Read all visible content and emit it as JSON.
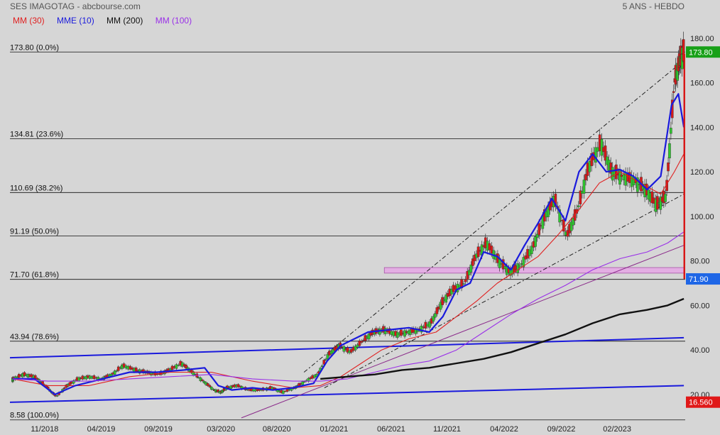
{
  "header": {
    "title": "SES IMAGOTAG - abcbourse.com",
    "period": "5 ANS - HEBDO"
  },
  "legend": [
    {
      "label": "MM (30)",
      "color": "#e02020"
    },
    {
      "label": "MME (10)",
      "color": "#1a1adc"
    },
    {
      "label": "MM (200)",
      "color": "#111111"
    },
    {
      "label": "MM (100)",
      "color": "#9a30e8"
    }
  ],
  "chart_data": {
    "type": "line",
    "title": "SES IMAGOTAG - abcbourse.com",
    "subtitle": "5 ANS - HEBDO",
    "ylim": [
      8.5,
      186
    ],
    "yticks": [
      20,
      40,
      60,
      80,
      100,
      120,
      140,
      160,
      180
    ],
    "ytick_labels": [
      "20.00",
      "40.00",
      "60.00",
      "80.00",
      "100.00",
      "120.00",
      "140.00",
      "160.00",
      "180.00"
    ],
    "xlim": [
      2018.62,
      2023.58
    ],
    "xticks": [
      {
        "label": "11/2018",
        "x": 2018.875
      },
      {
        "label": "04/2019",
        "x": 2019.29
      },
      {
        "label": "09/2019",
        "x": 2019.71
      },
      {
        "label": "03/2020",
        "x": 2020.17
      },
      {
        "label": "08/2020",
        "x": 2020.58
      },
      {
        "label": "01/2021",
        "x": 2021.0
      },
      {
        "label": "06/2021",
        "x": 2021.42
      },
      {
        "label": "11/2021",
        "x": 2021.83
      },
      {
        "label": "04/2022",
        "x": 2022.25
      },
      {
        "label": "09/2022",
        "x": 2022.67
      },
      {
        "label": "02/2023",
        "x": 2023.08
      }
    ],
    "fib_levels": [
      {
        "label": "173.80  (0.0%)",
        "value": 173.8
      },
      {
        "label": "134.81  (23.6%)",
        "value": 134.81
      },
      {
        "label": "110.69  (38.2%)",
        "value": 110.69
      },
      {
        "label": "91.19  (50.0%)",
        "value": 91.19
      },
      {
        "label": "71.70  (61.8%)",
        "value": 71.7
      },
      {
        "label": "43.94  (78.6%)",
        "value": 43.94
      },
      {
        "label": "8.58  (100.0%)",
        "value": 8.58
      }
    ],
    "price_series": {
      "x": [
        2018.64,
        2018.72,
        2018.8,
        2018.88,
        2018.96,
        2019.04,
        2019.12,
        2019.2,
        2019.29,
        2019.37,
        2019.45,
        2019.54,
        2019.62,
        2019.71,
        2019.79,
        2019.88,
        2019.96,
        2020.04,
        2020.12,
        2020.17,
        2020.21,
        2020.29,
        2020.37,
        2020.46,
        2020.54,
        2020.62,
        2020.71,
        2020.79,
        2020.88,
        2020.96,
        2021.04,
        2021.12,
        2021.21,
        2021.29,
        2021.37,
        2021.46,
        2021.54,
        2021.62,
        2021.71,
        2021.79,
        2021.87,
        2021.96,
        2022.04,
        2022.12,
        2022.21,
        2022.29,
        2022.37,
        2022.46,
        2022.54,
        2022.62,
        2022.71,
        2022.79,
        2022.87,
        2022.96,
        2023.04,
        2023.12,
        2023.21,
        2023.29,
        2023.37,
        2023.44,
        2023.5,
        2023.54,
        2023.57
      ],
      "close": [
        27,
        29,
        28,
        24,
        19,
        24,
        27,
        28,
        27,
        29,
        33,
        31,
        30,
        29,
        31,
        34,
        30,
        26,
        22,
        21,
        23,
        24,
        22,
        22,
        23,
        21,
        23,
        26,
        29,
        38,
        42,
        39,
        44,
        48,
        49,
        47,
        48,
        49,
        52,
        61,
        67,
        70,
        82,
        88,
        80,
        75,
        78,
        86,
        99,
        108,
        91,
        103,
        122,
        133,
        120,
        118,
        116,
        112,
        105,
        109,
        160,
        170,
        173.8
      ]
    },
    "series": [
      {
        "name": "MM (30)",
        "color": "#e02020",
        "x": [
          2018.64,
          2018.9,
          2019.2,
          2019.5,
          2019.8,
          2020.1,
          2020.4,
          2020.7,
          2020.9,
          2021.05,
          2021.2,
          2021.35,
          2021.55,
          2021.75,
          2021.9,
          2022.05,
          2022.2,
          2022.35,
          2022.5,
          2022.65,
          2022.8,
          2022.95,
          2023.1,
          2023.25,
          2023.4,
          2023.5,
          2023.57
        ],
        "values": [
          27,
          24,
          24,
          28,
          30,
          30,
          26,
          23,
          24,
          28,
          34,
          40,
          45,
          48,
          55,
          62,
          70,
          76,
          82,
          92,
          103,
          115,
          120,
          115,
          110,
          120,
          128
        ]
      },
      {
        "name": "MME (10)",
        "color": "#1a1adc",
        "x": [
          2018.64,
          2018.8,
          2018.95,
          2019.1,
          2019.3,
          2019.5,
          2019.7,
          2019.9,
          2020.05,
          2020.15,
          2020.25,
          2020.4,
          2020.55,
          2020.7,
          2020.85,
          2020.95,
          2021.05,
          2021.15,
          2021.25,
          2021.4,
          2021.55,
          2021.7,
          2021.8,
          2021.9,
          2022.0,
          2022.1,
          2022.2,
          2022.3,
          2022.4,
          2022.5,
          2022.6,
          2022.7,
          2022.8,
          2022.9,
          2023.0,
          2023.1,
          2023.2,
          2023.3,
          2023.4,
          2023.48,
          2023.53,
          2023.57
        ],
        "values": [
          27,
          27,
          20,
          24,
          27,
          30,
          30,
          31,
          32,
          24,
          22,
          23,
          22,
          23,
          25,
          35,
          42,
          45,
          48,
          49,
          50,
          48,
          55,
          67,
          70,
          84,
          82,
          76,
          87,
          97,
          108,
          98,
          120,
          128,
          120,
          121,
          118,
          112,
          118,
          150,
          155,
          140
        ]
      },
      {
        "name": "MM (100)",
        "color": "#9a30e8",
        "x": [
          2018.64,
          2018.9,
          2019.2,
          2019.5,
          2019.8,
          2020.1,
          2020.4,
          2020.7,
          2020.9,
          2021.1,
          2021.3,
          2021.5,
          2021.7,
          2021.9,
          2022.1,
          2022.3,
          2022.5,
          2022.7,
          2022.9,
          2023.1,
          2023.3,
          2023.45,
          2023.57
        ],
        "values": [
          27,
          26,
          26,
          27,
          28,
          29,
          27,
          26,
          26,
          27,
          30,
          33,
          35,
          40,
          48,
          56,
          63,
          69,
          76,
          81,
          84,
          88,
          93
        ]
      },
      {
        "name": "MM (200)",
        "color": "#111111",
        "x": [
          2020.9,
          2021.1,
          2021.3,
          2021.5,
          2021.7,
          2021.9,
          2022.1,
          2022.3,
          2022.5,
          2022.7,
          2022.9,
          2023.1,
          2023.3,
          2023.45,
          2023.57
        ],
        "values": [
          27,
          28,
          29,
          31,
          32,
          34,
          36,
          39,
          43,
          47,
          52,
          56,
          58,
          60,
          63
        ]
      }
    ],
    "last_price": "173.80",
    "current_price": "71.90",
    "low_price": "16.560",
    "price_box_colors": {
      "last": "#18a018",
      "current": "#1e66e6",
      "low": "#e01818"
    }
  }
}
